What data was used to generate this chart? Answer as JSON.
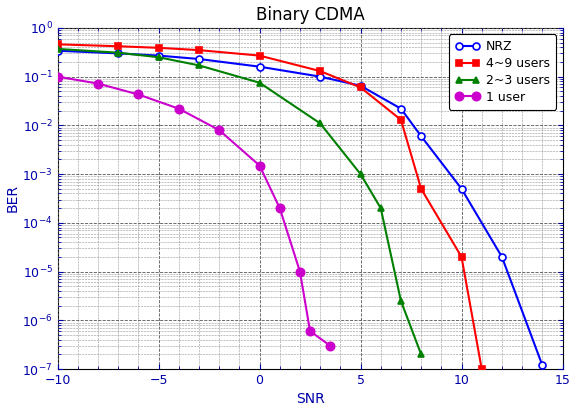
{
  "title": "Binary CDMA",
  "xlabel": "SNR",
  "ylabel": "BER",
  "xlim": [
    -10,
    15
  ],
  "ylim": [
    1e-07,
    1.0
  ],
  "xticks": [
    -10,
    -5,
    0,
    5,
    10,
    15
  ],
  "series": {
    "NRZ": {
      "color": "#0000FF",
      "marker": "o",
      "markerfacecolor": "white",
      "markeredgecolor": "#0000FF",
      "linewidth": 1.5,
      "markersize": 5,
      "snr": [
        -10,
        -7,
        -5,
        -3,
        0,
        3,
        5,
        7,
        8,
        10,
        12,
        14
      ],
      "ber": [
        0.34,
        0.3,
        0.27,
        0.23,
        0.16,
        0.1,
        0.065,
        0.022,
        0.006,
        0.0005,
        2e-05,
        1.2e-07
      ]
    },
    "4~9 users": {
      "color": "#FF0000",
      "marker": "s",
      "markerfacecolor": "#FF0000",
      "markeredgecolor": "#FF0000",
      "linewidth": 1.5,
      "markersize": 5,
      "snr": [
        -10,
        -7,
        -5,
        -3,
        0,
        3,
        5,
        7,
        8,
        10,
        11
      ],
      "ber": [
        0.46,
        0.42,
        0.39,
        0.35,
        0.27,
        0.13,
        0.06,
        0.013,
        0.0005,
        2e-05,
        1e-07
      ]
    },
    "2~3 users": {
      "color": "#008000",
      "marker": "^",
      "markerfacecolor": "#008000",
      "markeredgecolor": "#008000",
      "linewidth": 1.5,
      "markersize": 5,
      "snr": [
        -10,
        -7,
        -5,
        -3,
        0,
        3,
        5,
        6,
        7,
        8
      ],
      "ber": [
        0.37,
        0.31,
        0.25,
        0.17,
        0.075,
        0.011,
        0.001,
        0.0002,
        2.5e-06,
        2e-07
      ]
    },
    "1 user": {
      "color": "#CC00CC",
      "marker": ".",
      "markerfacecolor": "#CC00CC",
      "markeredgecolor": "#CC00CC",
      "linewidth": 1.5,
      "markersize": 6,
      "snr": [
        -10,
        -8,
        -6,
        -4,
        -2,
        0,
        1,
        2,
        2.5,
        3.5
      ],
      "ber": [
        0.1,
        0.072,
        0.043,
        0.022,
        0.008,
        0.0015,
        0.0002,
        1e-05,
        6e-07,
        3e-07
      ]
    }
  },
  "legend_order": [
    "NRZ",
    "4~9 users",
    "2~3 users",
    "1 user"
  ],
  "background_color": "#ffffff",
  "grid_color": "#444444"
}
